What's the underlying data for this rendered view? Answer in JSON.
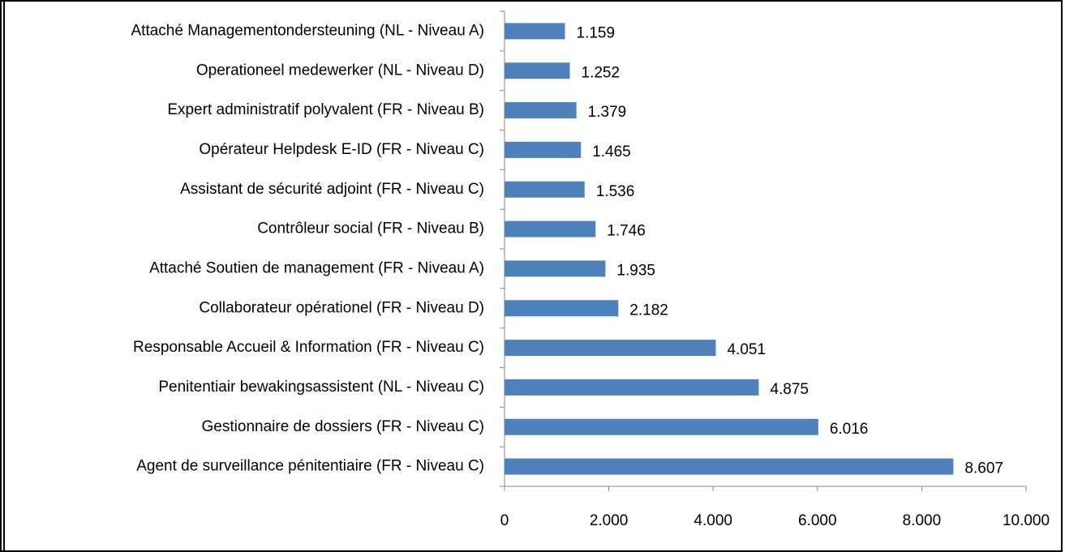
{
  "chart_data": {
    "type": "bar",
    "orientation": "horizontal",
    "categories": [
      "Attaché Managementondersteuning (NL - Niveau A)",
      "Operationeel medewerker (NL - Niveau D)",
      "Expert administratif polyvalent (FR - Niveau B)",
      "Opérateur Helpdesk E-ID (FR - Niveau C)",
      "Assistant de sécurité adjoint (FR - Niveau C)",
      "Contrôleur social (FR - Niveau B)",
      "Attaché Soutien de management (FR - Niveau A)",
      "Collaborateur opérationel (FR - Niveau D)",
      "Responsable Accueil & Information (FR - Niveau C)",
      "Penitentiair bewakingsassistent (NL - Niveau C)",
      "Gestionnaire de dossiers (FR - Niveau C)",
      "Agent de surveillance pénitentiaire (FR - Niveau C)"
    ],
    "values": [
      1159,
      1252,
      1379,
      1465,
      1536,
      1746,
      1935,
      2182,
      4051,
      4875,
      6016,
      8607
    ],
    "value_labels": [
      "1.159",
      "1.252",
      "1.379",
      "1.465",
      "1.536",
      "1.746",
      "1.935",
      "2.182",
      "4.051",
      "4.875",
      "6.016",
      "8.607"
    ],
    "color": "#4f81bd",
    "xlim": [
      0,
      10000
    ],
    "xticks": [
      0,
      {
        "value": 2000,
        "label": "2.000"
      },
      {
        "value": 4000,
        "label": "4.000"
      },
      {
        "value": 6000,
        "label": "6.000"
      },
      {
        "value": 8000,
        "label": "8.000"
      },
      {
        "value": 10000,
        "label": "10.000"
      }
    ]
  }
}
